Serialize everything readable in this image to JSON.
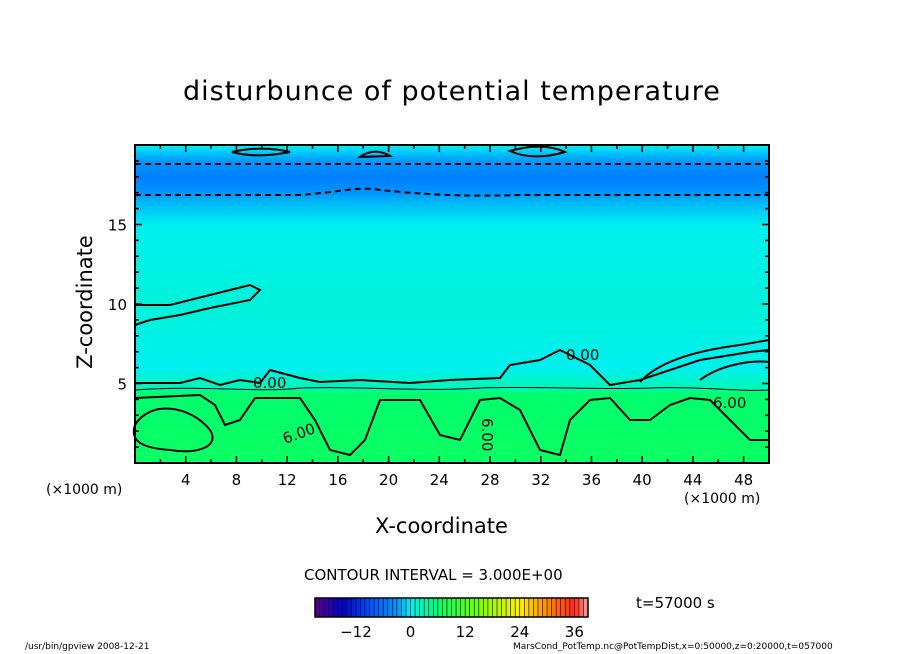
{
  "chart_data": {
    "type": "heatmap",
    "title": "disturbunce of potential temperature",
    "xlabel": "X-coordinate",
    "ylabel": "Z-coordinate",
    "x_units": "(×1000 m)",
    "y_units": "(×1000 m)",
    "xlim": [
      0,
      50
    ],
    "ylim": [
      0,
      20
    ],
    "x_ticks": [
      4,
      8,
      12,
      16,
      20,
      24,
      28,
      32,
      36,
      40,
      44,
      48
    ],
    "y_ticks": [
      5,
      10,
      15
    ],
    "contour_interval_label": "CONTOUR INTERVAL = 3.000E+00",
    "contour_labels": [
      "0.00",
      "0.00",
      "6.00",
      "6.00",
      "6.00"
    ],
    "contour_levels_shown": [
      -3,
      0,
      6
    ],
    "field_profile": [
      {
        "z": 0,
        "value": 7
      },
      {
        "z": 4.5,
        "value": 6
      },
      {
        "z": 4.6,
        "value": 3
      },
      {
        "z": 6,
        "value": 0
      },
      {
        "z": 10,
        "value": 1
      },
      {
        "z": 15,
        "value": 0
      },
      {
        "z": 16.5,
        "value": -2
      },
      {
        "z": 18,
        "value": -5
      },
      {
        "z": 19,
        "value": -3
      },
      {
        "z": 20,
        "value": 0
      }
    ],
    "colorbar": {
      "range": [
        -21,
        39
      ],
      "ticks": [
        -12,
        0,
        12,
        24,
        36
      ]
    },
    "time_label": "t=57000 s"
  },
  "footer": {
    "left": "/usr/bin/gpview  2008-12-21",
    "right": "MarsCond_PotTemp.nc@PotTempDist,x=0:50000,z=0:20000,t=057000"
  }
}
